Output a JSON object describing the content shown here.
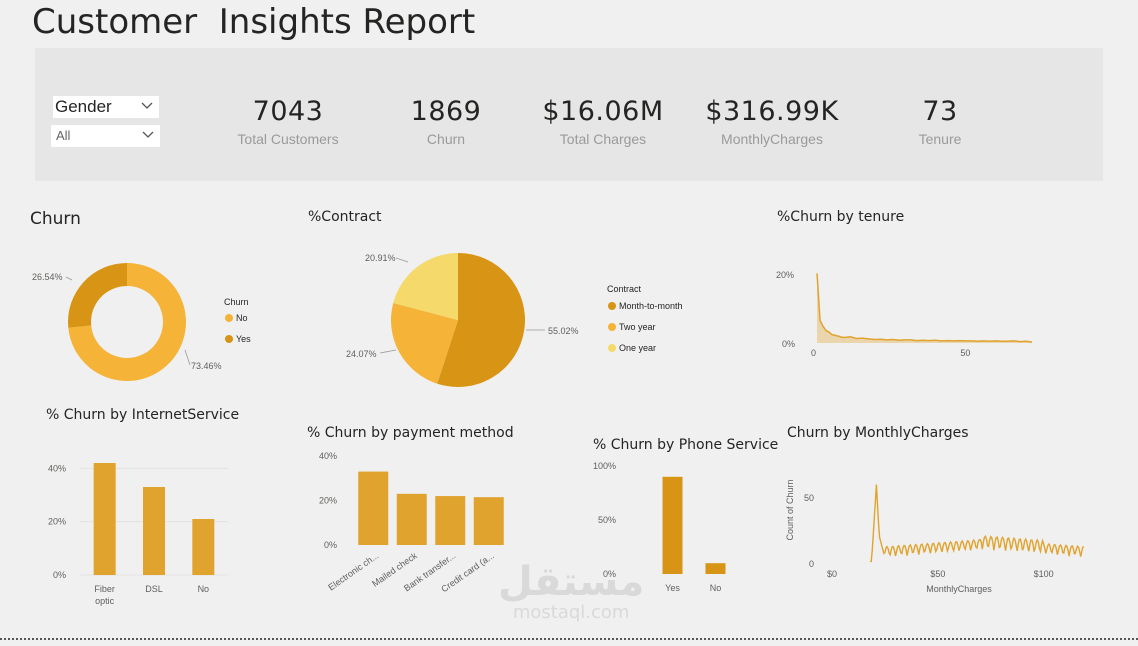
{
  "report": {
    "title": "Customer  Insights Report"
  },
  "slicer": {
    "field": "Gender",
    "selected": "All"
  },
  "kpis": [
    {
      "value": "7043",
      "label": "Total Customers"
    },
    {
      "value": "1869",
      "label": "Churn"
    },
    {
      "value": "$16.06M",
      "label": "Total Charges"
    },
    {
      "value": "$316.99K",
      "label": "MonthlyCharges"
    },
    {
      "value": "73",
      "label": "Tenure"
    }
  ],
  "colors": {
    "primary": "#e0a32e",
    "dark": "#d89414",
    "light": "#f5b337",
    "lightest": "#f5d96a",
    "bg": "#f0f0f0"
  },
  "visuals": {
    "churn": {
      "title": "Churn",
      "legend_title": "Churn"
    },
    "contract": {
      "title": "%Contract",
      "legend_title": "Contract"
    },
    "tenure": {
      "title": "%Churn by tenure"
    },
    "internet": {
      "title": "% Churn by InternetService"
    },
    "payment": {
      "title": "% Churn by payment method"
    },
    "phone": {
      "title": "% Churn by Phone Service"
    },
    "monthly": {
      "title": "Churn by MonthlyCharges"
    }
  },
  "chart_data": [
    {
      "type": "pie",
      "variant": "donut",
      "title": "Churn",
      "legend_title": "Churn",
      "slices": [
        {
          "label": "No",
          "value": 73.46,
          "display": "73.46%",
          "color": "#f5b337"
        },
        {
          "label": "Yes",
          "value": 26.54,
          "display": "26.54%",
          "color": "#d89414"
        }
      ],
      "legend": "right"
    },
    {
      "type": "pie",
      "title": "%Contract",
      "legend_title": "Contract",
      "slices": [
        {
          "label": "Month-to-month",
          "value": 55.02,
          "display": "55.02%",
          "color": "#d89414"
        },
        {
          "label": "Two year",
          "value": 24.07,
          "display": "24.07%",
          "color": "#f5b337"
        },
        {
          "label": "One year",
          "value": 20.91,
          "display": "20.91%",
          "color": "#f5d96a"
        }
      ],
      "legend": "right"
    },
    {
      "type": "area",
      "title": "%Churn by tenure",
      "y_ticks": [
        "20%",
        "0%"
      ],
      "x_ticks": [
        "0",
        "50"
      ],
      "xlim": [
        0,
        72
      ],
      "ylim": [
        0,
        20
      ],
      "x": [
        1,
        2,
        3,
        4,
        5,
        6,
        7,
        8,
        9,
        10,
        12,
        14,
        16,
        18,
        20,
        22,
        24,
        26,
        28,
        30,
        32,
        34,
        36,
        38,
        40,
        42,
        44,
        46,
        48,
        50,
        52,
        54,
        56,
        58,
        60,
        62,
        64,
        66,
        68,
        70,
        72
      ],
      "values": [
        20.2,
        6.5,
        4.8,
        3.6,
        3.1,
        2.4,
        2.2,
        2.0,
        1.7,
        1.6,
        1.8,
        1.3,
        1.4,
        1.2,
        1.0,
        1.1,
        0.9,
        1.0,
        0.8,
        0.9,
        0.9,
        0.7,
        0.8,
        0.7,
        0.8,
        0.6,
        0.7,
        0.6,
        0.7,
        0.6,
        0.6,
        0.5,
        0.6,
        0.5,
        0.6,
        0.5,
        0.5,
        0.6,
        0.4,
        0.5,
        0.3
      ]
    },
    {
      "type": "bar",
      "title": "% Churn by InternetService",
      "categories": [
        "Fiber optic",
        "DSL",
        "No"
      ],
      "values": [
        42,
        33,
        21
      ],
      "ylim": [
        0,
        45
      ],
      "y_ticks": [
        "40%",
        "20%",
        "0%"
      ]
    },
    {
      "type": "bar",
      "title": "% Churn by payment method",
      "categories": [
        "Electronic ch...",
        "Mailed check",
        "Bank transfer...",
        "Credit card (a..."
      ],
      "values": [
        33,
        23,
        22,
        21.5
      ],
      "ylim": [
        0,
        40
      ],
      "y_ticks": [
        "40%",
        "20%",
        "0%"
      ]
    },
    {
      "type": "bar",
      "title": "% Churn by Phone Service",
      "categories": [
        "Yes",
        "No"
      ],
      "values": [
        90,
        10
      ],
      "ylim": [
        0,
        100
      ],
      "y_ticks": [
        "100%",
        "50%",
        "0%"
      ]
    },
    {
      "type": "line",
      "title": "Churn by MonthlyCharges",
      "xlabel": "MonthlyCharges",
      "ylabel": "Count of Churn",
      "x_ticks": [
        "$0",
        "$50",
        "$100"
      ],
      "y_ticks": [
        "50",
        "0"
      ],
      "xlim": [
        0,
        120
      ],
      "ylim": [
        0,
        65
      ]
    }
  ]
}
